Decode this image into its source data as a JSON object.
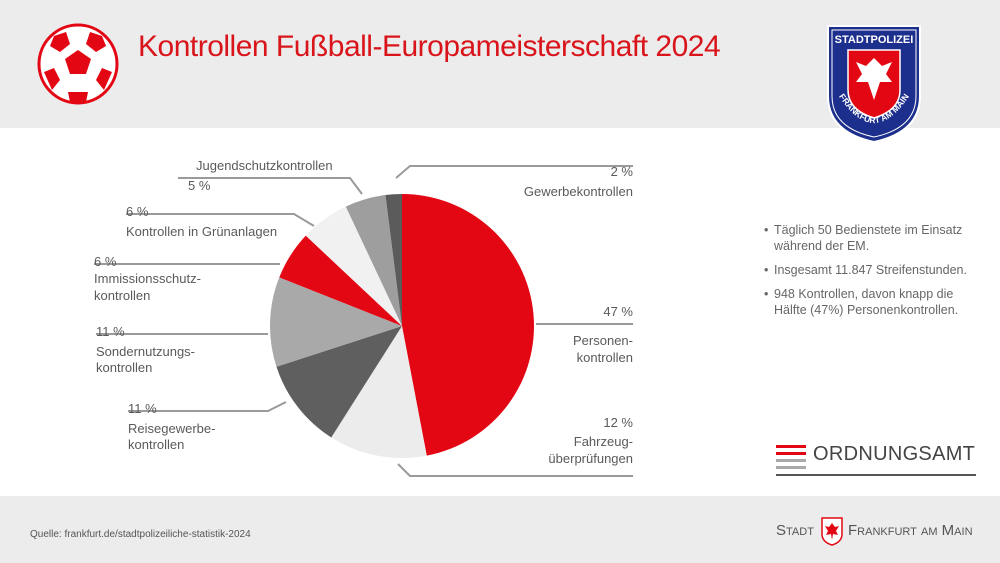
{
  "header": {
    "title": "Kontrollen Fußball-Europameisterschaft 2024"
  },
  "badge": {
    "top_text": "STADTPOLIZEI",
    "bottom_text": "FRANKFURT AM MAIN"
  },
  "chart_data": {
    "type": "pie",
    "title": "Kontrollen Fußball-Europameisterschaft 2024",
    "unit": "%",
    "slices": [
      {
        "label": "Personenkontrollen",
        "value": 47,
        "display": "47 %",
        "color": "#e30613"
      },
      {
        "label": "Fahrzeugüberprüfungen",
        "value": 12,
        "display": "12 %",
        "color": "#ececec"
      },
      {
        "label": "Reisegewerbekontrollen",
        "value": 11,
        "display": "11 %",
        "color": "#5f5f5f"
      },
      {
        "label": "Sondernutzungskontrollen",
        "value": 11,
        "display": "11 %",
        "color": "#a9a9a9"
      },
      {
        "label": "Immissionsschutzkontrollen",
        "value": 6,
        "display": "6 %",
        "color": "#e30613"
      },
      {
        "label": "Kontrollen in Grünanlagen",
        "value": 6,
        "display": "6 %",
        "color": "#f1f1f1"
      },
      {
        "label": "Jugendschutzkontrollen",
        "value": 5,
        "display": "5 %",
        "color": "#9e9e9e"
      },
      {
        "label": "Gewerbekontrollen",
        "value": 2,
        "display": "2 %",
        "color": "#5b5b5b"
      }
    ],
    "label_text": {
      "personen": [
        "Personen-",
        "kontrollen"
      ],
      "fahrzeug": [
        "Fahrzeug-",
        "überprüfungen"
      ],
      "reise": [
        "Reisegewerbe-",
        "kontrollen"
      ],
      "sonder": [
        "Sondernutzungs-",
        "kontrollen"
      ],
      "imm": [
        "Immissionsschutz-",
        "kontrollen"
      ],
      "gruen": [
        "Kontrollen in Grünanlagen"
      ],
      "jugend": [
        "Jugendschutzkontrollen"
      ],
      "gewerbe": [
        "Gewerbekontrollen"
      ]
    }
  },
  "bullets": [
    "Täglich 50 Bedienstete im Einsatz während der EM.",
    "Insgesamt 11.847 Streifenstunden.",
    "948 Kontrollen, davon knapp die Hälfte (47%) Personenkontrollen."
  ],
  "ordnungsamt": {
    "label": "ORDNUNGSAMT"
  },
  "footer": {
    "source": "Quelle: frankfurt.de/stadtpolizeiliche-statistik-2024",
    "city_left": "Stadt",
    "city_right": "Frankfurt am Main"
  },
  "colors": {
    "accent": "#d9141b",
    "text": "#5a5a5a",
    "band": "#ececec"
  }
}
